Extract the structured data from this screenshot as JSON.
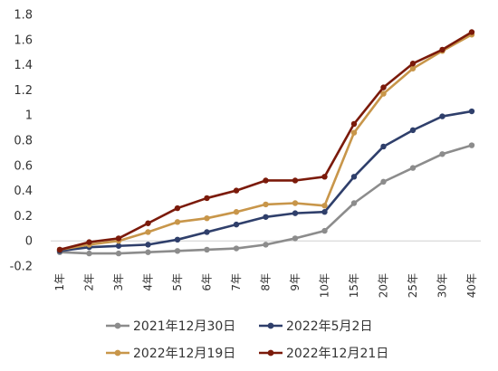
{
  "chart_data": {
    "type": "line",
    "title": "",
    "xlabel": "",
    "ylabel": "",
    "categories": [
      "1年",
      "2年",
      "3年",
      "4年",
      "5年",
      "6年",
      "7年",
      "8年",
      "9年",
      "10年",
      "15年",
      "20年",
      "25年",
      "30年",
      "40年"
    ],
    "ylim": [
      -0.2,
      1.8
    ],
    "yticks": [
      -0.2,
      0,
      0.2,
      0.4,
      0.6,
      0.8,
      1,
      1.2,
      1.4,
      1.6,
      1.8
    ],
    "ytick_labels": [
      "-0.2",
      "0",
      "0.2",
      "0.4",
      "0.6",
      "0.8",
      "1",
      "1.2",
      "1.4",
      "1.6",
      "1.8"
    ],
    "grid": false,
    "legend_position": "bottom",
    "series": [
      {
        "name": "2021年12月30日",
        "color": "#8c8c8c",
        "values": [
          -0.09,
          -0.1,
          -0.1,
          -0.09,
          -0.08,
          -0.07,
          -0.06,
          -0.03,
          0.02,
          0.08,
          0.3,
          0.47,
          0.58,
          0.69,
          0.76
        ]
      },
      {
        "name": "2022年5月2日",
        "color": "#2f3f6b",
        "values": [
          -0.08,
          -0.05,
          -0.04,
          -0.03,
          0.01,
          0.07,
          0.13,
          0.19,
          0.22,
          0.23,
          0.51,
          0.75,
          0.88,
          0.99,
          1.03
        ]
      },
      {
        "name": "2022年12月19日",
        "color": "#c8964a",
        "values": [
          -0.07,
          -0.03,
          0.0,
          0.07,
          0.15,
          0.18,
          0.23,
          0.29,
          0.3,
          0.28,
          0.86,
          1.17,
          1.37,
          1.51,
          1.64
        ]
      },
      {
        "name": "2022年12月21日",
        "color": "#7b1a0a",
        "values": [
          -0.07,
          -0.01,
          0.02,
          0.14,
          0.26,
          0.34,
          0.4,
          0.48,
          0.48,
          0.51,
          0.93,
          1.22,
          1.41,
          1.52,
          1.66
        ]
      }
    ]
  }
}
